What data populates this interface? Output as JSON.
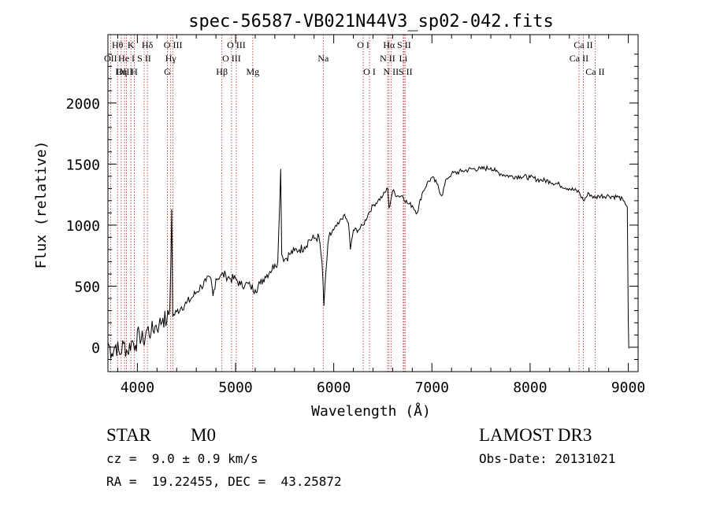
{
  "chart_data": {
    "type": "line",
    "title": "spec-56587-VB021N44V3_sp02-042.fits",
    "xlabel": "Wavelength (Å)",
    "ylabel": "Flux (relative)",
    "xlim": [
      3700,
      9100
    ],
    "ylim": [
      -200,
      2560
    ],
    "x_ticks": [
      4000,
      5000,
      6000,
      7000,
      8000,
      9000
    ],
    "y_ticks": [
      0,
      500,
      1000,
      1500,
      2000
    ],
    "series": [
      {
        "name": "flux",
        "points": [
          [
            3700,
            40
          ],
          [
            3740,
            -50
          ],
          [
            3780,
            20
          ],
          [
            3820,
            -60
          ],
          [
            3860,
            30
          ],
          [
            3900,
            -40
          ],
          [
            3940,
            50
          ],
          [
            3980,
            20
          ],
          [
            4020,
            110
          ],
          [
            4060,
            40
          ],
          [
            4100,
            150
          ],
          [
            4140,
            120
          ],
          [
            4180,
            170
          ],
          [
            4220,
            180
          ],
          [
            4260,
            240
          ],
          [
            4300,
            210
          ],
          [
            4330,
            300
          ],
          [
            4350,
            1130
          ],
          [
            4360,
            250
          ],
          [
            4400,
            290
          ],
          [
            4450,
            330
          ],
          [
            4500,
            360
          ],
          [
            4550,
            400
          ],
          [
            4600,
            450
          ],
          [
            4650,
            500
          ],
          [
            4700,
            540
          ],
          [
            4750,
            560
          ],
          [
            4770,
            420
          ],
          [
            4800,
            560
          ],
          [
            4850,
            590
          ],
          [
            4900,
            590
          ],
          [
            4950,
            560
          ],
          [
            5000,
            560
          ],
          [
            5050,
            510
          ],
          [
            5100,
            520
          ],
          [
            5150,
            500
          ],
          [
            5200,
            470
          ],
          [
            5250,
            520
          ],
          [
            5300,
            580
          ],
          [
            5350,
            620
          ],
          [
            5400,
            680
          ],
          [
            5430,
            700
          ],
          [
            5460,
            1460
          ],
          [
            5470,
            760
          ],
          [
            5500,
            720
          ],
          [
            5550,
            760
          ],
          [
            5600,
            790
          ],
          [
            5650,
            800
          ],
          [
            5700,
            820
          ],
          [
            5750,
            880
          ],
          [
            5800,
            890
          ],
          [
            5850,
            900
          ],
          [
            5880,
            700
          ],
          [
            5900,
            340
          ],
          [
            5920,
            620
          ],
          [
            5950,
            900
          ],
          [
            6000,
            960
          ],
          [
            6050,
            1010
          ],
          [
            6100,
            1080
          ],
          [
            6150,
            1020
          ],
          [
            6170,
            800
          ],
          [
            6200,
            960
          ],
          [
            6250,
            960
          ],
          [
            6300,
            1000
          ],
          [
            6350,
            1090
          ],
          [
            6400,
            1160
          ],
          [
            6450,
            1200
          ],
          [
            6500,
            1240
          ],
          [
            6550,
            1300
          ],
          [
            6563,
            1140
          ],
          [
            6600,
            1280
          ],
          [
            6650,
            1240
          ],
          [
            6700,
            1240
          ],
          [
            6750,
            1180
          ],
          [
            6800,
            1160
          ],
          [
            6850,
            1100
          ],
          [
            6900,
            1260
          ],
          [
            6950,
            1340
          ],
          [
            7000,
            1390
          ],
          [
            7050,
            1340
          ],
          [
            7100,
            1240
          ],
          [
            7150,
            1380
          ],
          [
            7200,
            1420
          ],
          [
            7300,
            1440
          ],
          [
            7400,
            1460
          ],
          [
            7500,
            1460
          ],
          [
            7600,
            1470
          ],
          [
            7650,
            1440
          ],
          [
            7700,
            1420
          ],
          [
            7800,
            1400
          ],
          [
            7900,
            1400
          ],
          [
            8000,
            1390
          ],
          [
            8100,
            1370
          ],
          [
            8200,
            1360
          ],
          [
            8300,
            1330
          ],
          [
            8400,
            1300
          ],
          [
            8500,
            1270
          ],
          [
            8542,
            1200
          ],
          [
            8600,
            1260
          ],
          [
            8662,
            1220
          ],
          [
            8700,
            1240
          ],
          [
            8800,
            1240
          ],
          [
            8900,
            1230
          ],
          [
            8950,
            1200
          ],
          [
            8990,
            1150
          ],
          [
            9000,
            230
          ],
          [
            9005,
            -10
          ]
        ]
      }
    ],
    "spectral_lines": [
      {
        "name": "Hθ",
        "wl": 3798,
        "row": 0
      },
      {
        "name": "OII",
        "wl": 3727,
        "row": 1
      },
      {
        "name": "OIII",
        "wl": 3869,
        "row": 2
      },
      {
        "name": "He I",
        "wl": 3889,
        "row": 1
      },
      {
        "name": "Hη",
        "wl": 3835,
        "row": 2
      },
      {
        "name": "K",
        "wl": 3934,
        "row": 0
      },
      {
        "name": "H",
        "wl": 3968,
        "row": 2
      },
      {
        "name": "S II",
        "wl": 4069,
        "row": 1
      },
      {
        "name": "Hδ",
        "wl": 4102,
        "row": 0
      },
      {
        "name": "G",
        "wl": 4305,
        "row": 2
      },
      {
        "name": "Hγ",
        "wl": 4340,
        "row": 1
      },
      {
        "name": "O III",
        "wl": 4363,
        "row": 0
      },
      {
        "name": "Hβ",
        "wl": 4861,
        "row": 2
      },
      {
        "name": "O III",
        "wl": 4959,
        "row": 1
      },
      {
        "name": "O III",
        "wl": 5007,
        "row": 0
      },
      {
        "name": "Mg",
        "wl": 5175,
        "row": 2
      },
      {
        "name": "Na",
        "wl": 5893,
        "row": 1
      },
      {
        "name": "O I",
        "wl": 6300,
        "row": 0
      },
      {
        "name": "O I",
        "wl": 6364,
        "row": 2
      },
      {
        "name": "N II",
        "wl": 6548,
        "row": 1
      },
      {
        "name": "Hα",
        "wl": 6563,
        "row": 0
      },
      {
        "name": "N II",
        "wl": 6583,
        "row": 2
      },
      {
        "name": "Li",
        "wl": 6708,
        "row": 1
      },
      {
        "name": "S II",
        "wl": 6716,
        "row": 0
      },
      {
        "name": "S II",
        "wl": 6731,
        "row": 2
      },
      {
        "name": "Ca II",
        "wl": 8498,
        "row": 1
      },
      {
        "name": "Ca II",
        "wl": 8542,
        "row": 0
      },
      {
        "name": "Ca II",
        "wl": 8662,
        "row": 2
      }
    ]
  },
  "info": {
    "object_class": "STAR",
    "subclass": "M0",
    "survey": "LAMOST DR3",
    "redshift": "cz =  9.0 ± 0.9 km/s",
    "obs_date": "Obs-Date: 20131021",
    "coords": "RA =  19.22455, DEC =  43.25872"
  }
}
